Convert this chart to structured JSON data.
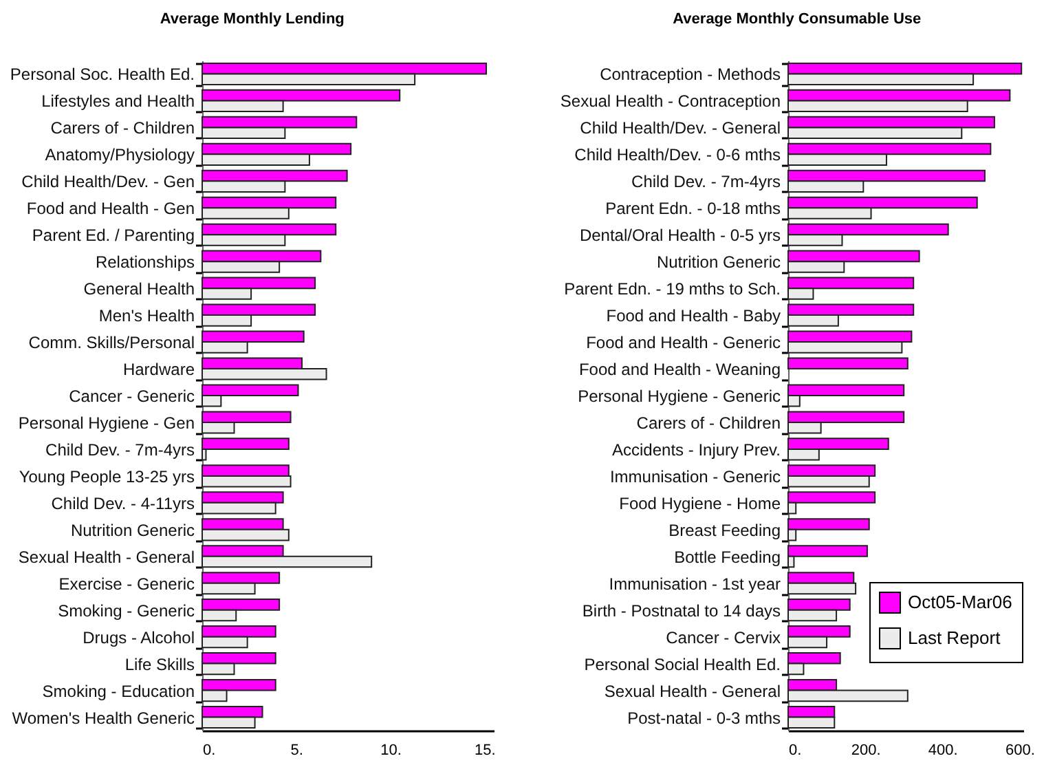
{
  "chart_data": [
    {
      "type": "bar",
      "title": "Average Monthly Lending",
      "orientation": "horizontal",
      "categories": [
        "Personal Soc. Health Ed.",
        "Lifestyles and Health",
        "Carers of - Children",
        "Anatomy/Physiology",
        "Child Health/Dev. - Gen",
        "Food and Health - Gen",
        "Parent Ed. / Parenting",
        "Relationships",
        "General Health",
        "Men's Health",
        "Comm. Skills/Personal",
        "Hardware",
        "Cancer - Generic",
        "Personal Hygiene - Gen",
        "Child Dev. - 7m-4yrs",
        "Young People 13-25 yrs",
        "Child Dev. - 4-11yrs",
        "Nutrition Generic",
        "Sexual Health - General",
        "Exercise - Generic",
        "Smoking - Generic",
        "Drugs - Alcohol",
        "Life Skills",
        "Smoking - Education",
        "Women's Health Generic"
      ],
      "series": [
        {
          "color": "#ff00ff",
          "values": [
            15.1,
            10.5,
            8.2,
            7.9,
            7.7,
            7.1,
            7.1,
            6.3,
            6.0,
            6.0,
            5.4,
            5.3,
            5.1,
            4.7,
            4.6,
            4.6,
            4.3,
            4.3,
            4.3,
            4.1,
            4.1,
            3.9,
            3.9,
            3.9,
            3.2
          ]
        },
        {
          "color": "#ececec",
          "values": [
            11.3,
            4.3,
            4.4,
            5.7,
            4.4,
            4.6,
            4.4,
            4.1,
            2.6,
            2.6,
            2.4,
            6.6,
            1.0,
            1.7,
            0.2,
            4.7,
            3.9,
            4.6,
            9.0,
            2.8,
            1.8,
            2.4,
            1.7,
            1.3,
            2.8
          ]
        }
      ],
      "xlim": [
        0,
        15.5
      ],
      "xticks": [
        {
          "value": 0,
          "label": "0."
        },
        {
          "value": 5,
          "label": "5."
        },
        {
          "value": 10,
          "label": "10."
        },
        {
          "value": 15,
          "label": "15."
        }
      ],
      "grid": false,
      "legend": false
    },
    {
      "type": "bar",
      "title": "Average Monthly Consumable Use",
      "orientation": "horizontal",
      "categories": [
        "Contraception - Methods",
        "Sexual Health - Contraception",
        "Child Health/Dev. - General",
        "Child Health/Dev. - 0-6 mths",
        "Child Dev. - 7m-4yrs",
        "Parent Edn. - 0-18 mths",
        "Dental/Oral Health - 0-5 yrs",
        "Nutrition Generic",
        "Parent Edn. - 19 mths to Sch.",
        "Food and Health - Baby",
        "Food and Health - Generic",
        "Food and Health - Weaning",
        "Personal Hygiene - Generic",
        "Carers of - Children",
        "Accidents - Injury Prev.",
        "Immunisation - Generic",
        "Food Hygiene - Home",
        "Breast Feeding",
        "Bottle Feeding",
        "Immunisation - 1st year",
        "Birth - Postnatal to 14 days",
        "Cancer - Cervix",
        "Personal Social Health Ed.",
        "Sexual Health - General",
        "Post-natal - 0-3 mths"
      ],
      "series": [
        {
          "name": "Oct05-Mar06",
          "color": "#ff00ff",
          "values": [
            605,
            575,
            535,
            525,
            510,
            490,
            415,
            340,
            325,
            325,
            320,
            310,
            300,
            300,
            260,
            225,
            225,
            210,
            205,
            170,
            160,
            160,
            135,
            125,
            120
          ]
        },
        {
          "name": "Last Report",
          "color": "#ececec",
          "values": [
            480,
            465,
            450,
            255,
            195,
            215,
            140,
            145,
            65,
            130,
            295,
            null,
            30,
            85,
            80,
            210,
            20,
            20,
            15,
            175,
            125,
            100,
            40,
            310,
            120
          ]
        }
      ],
      "xlim": [
        0,
        610
      ],
      "xticks": [
        {
          "value": 0,
          "label": "0."
        },
        {
          "value": 200,
          "label": "200."
        },
        {
          "value": 400,
          "label": "400."
        },
        {
          "value": 600,
          "label": "600."
        }
      ],
      "grid": false,
      "legend": "bottom right"
    }
  ]
}
